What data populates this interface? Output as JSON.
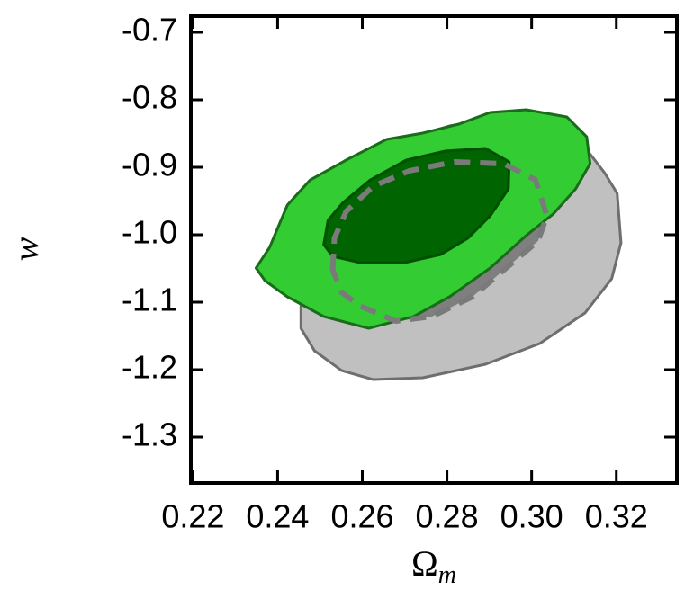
{
  "chart_data": {
    "type": "contour",
    "xlabel": {
      "text": "Ω",
      "subscript": "m"
    },
    "ylabel": "w",
    "xlim": [
      0.2195,
      0.3343
    ],
    "ylim": [
      -1.368,
      -0.676
    ],
    "xticks": [
      0.22,
      0.24,
      0.26,
      0.28,
      {
        "value": 0.3,
        "label": "0.30"
      },
      0.32
    ],
    "yticks": [
      -0.7,
      -0.8,
      -0.9,
      {
        "value": -1,
        "label": "-1.0"
      },
      -1.1,
      -1.2,
      -1.3
    ],
    "series": [
      {
        "color": "#c0c0c0",
        "edge_color": "#6e6e6e",
        "x": [
          0.2455,
          0.2487,
          0.2551,
          0.2626,
          0.2743,
          0.2891,
          0.3019,
          0.3126,
          0.3189,
          0.3211,
          0.3202,
          0.3172,
          0.3136,
          0.3083,
          0.2977,
          0.2806,
          0.2636,
          0.253,
          0.2466,
          0.2455
        ],
        "y": [
          -1.1387,
          -1.172,
          -1.2013,
          -1.2147,
          -1.212,
          -1.192,
          -1.1613,
          -1.116,
          -1.0653,
          -1.012,
          -0.9387,
          -0.908,
          -0.8787,
          -0.8387,
          -0.8187,
          -0.8387,
          -0.872,
          -0.9187,
          -0.9987,
          -1.0787
        ]
      },
      {
        "color": "#7f7f7f",
        "edge_color": "#7a7a7a",
        "linestyle": "dashed",
        "x": [
          0.253,
          0.2534,
          0.2562,
          0.2626,
          0.2711,
          0.2817,
          0.2934,
          0.3009,
          0.3036,
          0.3015,
          0.2955,
          0.286,
          0.2764,
          0.2679,
          0.2594,
          0.2551
        ],
        "y": [
          -1.052,
          -1.0053,
          -0.9653,
          -0.928,
          -0.9053,
          -0.892,
          -0.8947,
          -0.9187,
          -0.972,
          -1.0093,
          -1.0413,
          -1.092,
          -1.1213,
          -1.128,
          -1.1053,
          -1.0853
        ]
      },
      {
        "color": "#33cc33",
        "edge_color": "#1a6b1a",
        "x": [
          0.2349,
          0.2381,
          0.2423,
          0.2477,
          0.2562,
          0.2657,
          0.2743,
          0.2828,
          0.2902,
          0.2987,
          0.3083,
          0.313,
          0.3138,
          0.3104,
          0.3051,
          0.2987,
          0.2902,
          0.2806,
          0.2721,
          0.2615,
          0.2509,
          0.2423,
          0.237
        ],
        "y": [
          -1.0493,
          -1.0187,
          -0.956,
          -0.9187,
          -0.8893,
          -0.8587,
          -0.8493,
          -0.836,
          -0.8187,
          -0.8147,
          -0.8253,
          -0.8547,
          -0.8947,
          -0.932,
          -0.9693,
          -1.0013,
          -1.0493,
          -1.092,
          -1.1213,
          -1.1387,
          -1.1213,
          -1.092,
          -1.068
        ]
      },
      {
        "color": "#006400",
        "edge_color": "#005000",
        "x": [
          0.2509,
          0.2519,
          0.2555,
          0.2619,
          0.2704,
          0.2796,
          0.2891,
          0.2947,
          0.2945,
          0.2902,
          0.2849,
          0.2785,
          0.27,
          0.2594,
          0.253
        ],
        "y": [
          -1.0147,
          -0.9787,
          -0.952,
          -0.9187,
          -0.8893,
          -0.876,
          -0.872,
          -0.892,
          -0.932,
          -0.972,
          -1.0053,
          -1.0293,
          -1.0413,
          -1.0413,
          -1.032
        ]
      }
    ]
  }
}
